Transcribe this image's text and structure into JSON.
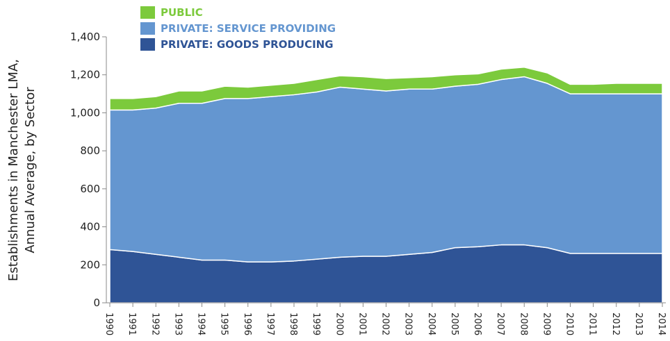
{
  "chart_data": {
    "type": "area",
    "stacked": true,
    "x": [
      "1990",
      "1991",
      "1992",
      "1993",
      "1994",
      "1995",
      "1996",
      "1997",
      "1998",
      "1999",
      "2000",
      "2001",
      "2002",
      "2003",
      "2004",
      "2005",
      "2006",
      "2007",
      "2008",
      "2009",
      "2010",
      "2011",
      "2012",
      "2013",
      "2014"
    ],
    "series": [
      {
        "name": "PRIVATE: GOODS PRODUCING",
        "color": "#2f5496",
        "values": [
          280,
          270,
          255,
          240,
          225,
          225,
          215,
          215,
          220,
          230,
          240,
          245,
          245,
          255,
          265,
          290,
          295,
          305,
          305,
          290,
          260,
          260,
          260,
          260,
          260
        ]
      },
      {
        "name": "PRIVATE: SERVICE PROVIDING",
        "color": "#6496d0",
        "values": [
          735,
          745,
          770,
          810,
          825,
          850,
          860,
          870,
          875,
          880,
          895,
          880,
          870,
          870,
          860,
          850,
          855,
          870,
          885,
          865,
          840,
          840,
          840,
          840,
          840
        ]
      },
      {
        "name": "PUBLIC",
        "color": "#7cca3c",
        "values": [
          60,
          60,
          60,
          65,
          65,
          65,
          60,
          60,
          60,
          65,
          60,
          65,
          65,
          60,
          65,
          60,
          55,
          55,
          50,
          55,
          50,
          50,
          55,
          55,
          55
        ]
      }
    ],
    "legend_order": [
      "PUBLIC",
      "PRIVATE: SERVICE PROVIDING",
      "PRIVATE: GOODS PRODUCING"
    ],
    "legend_placement": "top-left",
    "ylabel_lines": [
      "Establishments in Manchester LMA,",
      "Annual Average, by Sector"
    ],
    "ylim": [
      0,
      1400
    ],
    "yticks": [
      0,
      200,
      400,
      600,
      800,
      1000,
      1200,
      1400
    ],
    "ytick_labels": [
      "0",
      "200",
      "400",
      "600",
      "800",
      "1,000",
      "1,200",
      "1,400"
    ],
    "grid": false
  }
}
